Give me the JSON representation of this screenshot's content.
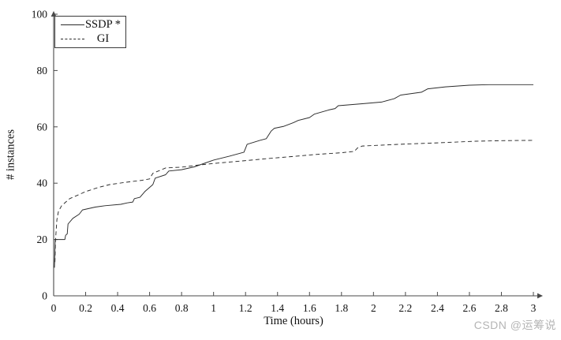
{
  "chart_data": {
    "type": "line",
    "title": "",
    "xlabel": "Time (hours)",
    "ylabel": "# instances",
    "xlim": [
      0,
      3
    ],
    "ylim": [
      0,
      100
    ],
    "x_ticks": [
      0,
      0.2,
      0.4,
      0.6,
      0.8,
      1,
      1.2,
      1.4,
      1.6,
      1.8,
      2,
      2.2,
      2.4,
      2.6,
      2.8,
      3
    ],
    "x_tick_labels": [
      "0",
      "0.2",
      "0.4",
      "0.6",
      "0.8",
      "1",
      "1.2",
      "1.4",
      "1.6",
      "1.8",
      "2",
      "2.2",
      "2.4",
      "2.6",
      "2.8",
      "3"
    ],
    "y_ticks": [
      0,
      20,
      40,
      60,
      80,
      100
    ],
    "y_tick_labels": [
      "0",
      "20",
      "40",
      "60",
      "80",
      "100"
    ],
    "grid": false,
    "legend_position": "top-left",
    "line_color": "#2a2a2a",
    "axis_color": "#4a4a4a",
    "series": [
      {
        "name": "SSDP *",
        "style": "solid",
        "points": [
          [
            0.005,
            10
          ],
          [
            0.01,
            20
          ],
          [
            0.07,
            20
          ],
          [
            0.075,
            21.5
          ],
          [
            0.085,
            22
          ],
          [
            0.09,
            25.5
          ],
          [
            0.12,
            27.5
          ],
          [
            0.16,
            29
          ],
          [
            0.18,
            30.5
          ],
          [
            0.26,
            31.5
          ],
          [
            0.32,
            32
          ],
          [
            0.42,
            32.5
          ],
          [
            0.46,
            33
          ],
          [
            0.495,
            33.3
          ],
          [
            0.505,
            34.5
          ],
          [
            0.54,
            35
          ],
          [
            0.57,
            37
          ],
          [
            0.62,
            39.5
          ],
          [
            0.635,
            41.8
          ],
          [
            0.7,
            43
          ],
          [
            0.72,
            44.3
          ],
          [
            0.8,
            44.8
          ],
          [
            0.88,
            45.8
          ],
          [
            0.95,
            47.2
          ],
          [
            1.0,
            48.2
          ],
          [
            1.1,
            49.6
          ],
          [
            1.19,
            51
          ],
          [
            1.21,
            53.8
          ],
          [
            1.29,
            55.2
          ],
          [
            1.33,
            55.8
          ],
          [
            1.36,
            58.5
          ],
          [
            1.38,
            59.5
          ],
          [
            1.44,
            60.2
          ],
          [
            1.5,
            61.5
          ],
          [
            1.53,
            62.3
          ],
          [
            1.6,
            63.3
          ],
          [
            1.63,
            64.5
          ],
          [
            1.72,
            66
          ],
          [
            1.76,
            66.5
          ],
          [
            1.78,
            67.5
          ],
          [
            1.93,
            68.2
          ],
          [
            2.05,
            68.8
          ],
          [
            2.13,
            70
          ],
          [
            2.17,
            71.3
          ],
          [
            2.3,
            72.3
          ],
          [
            2.34,
            73.5
          ],
          [
            2.45,
            74.2
          ],
          [
            2.6,
            74.8
          ],
          [
            2.72,
            75
          ],
          [
            3.0,
            75
          ]
        ]
      },
      {
        "name": "GI",
        "style": "dashed",
        "points": [
          [
            0.008,
            12
          ],
          [
            0.012,
            20
          ],
          [
            0.02,
            27
          ],
          [
            0.03,
            30
          ],
          [
            0.05,
            32
          ],
          [
            0.08,
            33.5
          ],
          [
            0.1,
            34.5
          ],
          [
            0.14,
            35.5
          ],
          [
            0.2,
            37
          ],
          [
            0.28,
            38.5
          ],
          [
            0.35,
            39.5
          ],
          [
            0.45,
            40.3
          ],
          [
            0.55,
            41
          ],
          [
            0.6,
            41.5
          ],
          [
            0.62,
            43.5
          ],
          [
            0.65,
            44.2
          ],
          [
            0.7,
            45.4
          ],
          [
            0.8,
            45.7
          ],
          [
            0.9,
            46.4
          ],
          [
            1.0,
            47
          ],
          [
            1.2,
            48
          ],
          [
            1.35,
            48.8
          ],
          [
            1.5,
            49.5
          ],
          [
            1.64,
            50.2
          ],
          [
            1.8,
            50.8
          ],
          [
            1.88,
            51.3
          ],
          [
            1.9,
            52.5
          ],
          [
            1.93,
            53.2
          ],
          [
            2.05,
            53.5
          ],
          [
            2.2,
            53.9
          ],
          [
            2.4,
            54.3
          ],
          [
            2.64,
            54.9
          ],
          [
            2.8,
            55.1
          ],
          [
            3.0,
            55.2
          ]
        ]
      }
    ]
  },
  "watermark": {
    "text": "CSDN @运筹说",
    "color": "#b5b5b5"
  },
  "colors": {
    "background": "#ffffff",
    "text": "#111111"
  }
}
